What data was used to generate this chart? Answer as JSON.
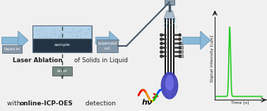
{
  "bg_color": "#f0f0f0",
  "arrow_color": "#8ab8d8",
  "arrow_edge": "#6090b0",
  "box_fill": "#8898a8",
  "box_edge": "#667788",
  "sample_chamber_fill": "#99aabb",
  "sample_chamber_edge": "#556677",
  "sample_dark_fill": "#223344",
  "sample_dark_edge": "#112233",
  "liquid_fill_top": "#b8d8f0",
  "laser_box_fill": "#778a82",
  "laser_box_edge": "#556060",
  "torch_fill": "#aaaaaa",
  "torch_edge": "#777777",
  "torch_black": "#111111",
  "flame_color1": "#5555cc",
  "flame_color2": "#8866bb",
  "flame_color3": "#4444aa",
  "nebulizer_fill": "#aabbcc",
  "pump_fill": "#889999",
  "tube_color": "#555566",
  "green_peak": "#22cc22",
  "text_dark": "#222222",
  "text_white": "#ffffff",
  "text_gray": "#888888",
  "spray_color": "#88bbdd",
  "wave_colors": [
    "#ff0000",
    "#ff6600",
    "#ffcc00",
    "#00cc00",
    "#0066ff",
    "#6600cc"
  ],
  "label_hv": "hν",
  "label_laser": "laser",
  "label_sample": "sample",
  "label_liquid_in": "liquid in",
  "label_suspension_out": "suspension\nout",
  "label_laser_ablation": "Laser Ablation",
  "label_of_solids": "of Solids in Liquid",
  "label_with": "with ",
  "label_bold": "online-ICP-OES",
  "label_detect": " detection",
  "label_signal": "Signal Intensity [cps]",
  "label_time": "Time [s]"
}
